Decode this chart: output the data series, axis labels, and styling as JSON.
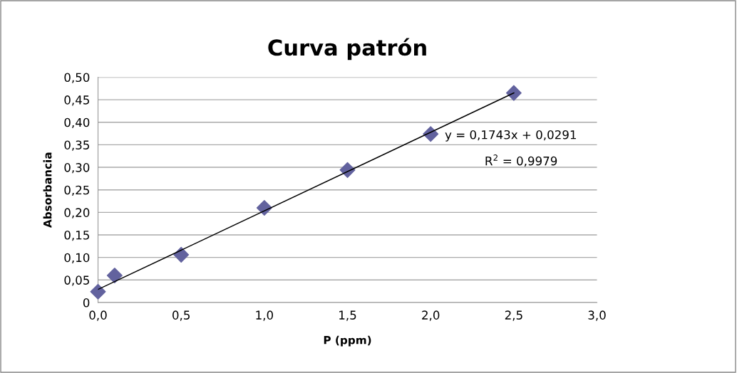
{
  "chart_data": {
    "type": "scatter",
    "title": "Curva patrón",
    "xlabel": "P (ppm)",
    "ylabel": "Absorbancia",
    "series": [
      {
        "color": "#62629e",
        "marker": "diamond",
        "x": [
          0,
          0.1,
          0.5,
          1.0,
          1.5,
          2.0,
          2.5
        ],
        "values": [
          0.024,
          0.06,
          0.106,
          0.21,
          0.294,
          0.374,
          0.465
        ]
      },
      {
        "type": "line",
        "color": "#000000",
        "marker": "none",
        "line_style": "solid",
        "x": [
          0,
          2.5
        ],
        "values": [
          0.029,
          0.465
        ]
      }
    ],
    "annotations": [
      "y = 0,1743x + 0,0291",
      "R$^{2}$ = 0,9979"
    ],
    "xlim": [
      0,
      3
    ],
    "xticks": [
      {
        "value": 0,
        "label": "0,0"
      },
      {
        "value": 0.5,
        "label": "0,5"
      },
      {
        "value": 1,
        "label": "1,0"
      },
      {
        "value": 1.5,
        "label": "1,5"
      },
      {
        "value": 2,
        "label": "2,0"
      },
      {
        "value": 2.5,
        "label": "2,5"
      },
      {
        "value": 3,
        "label": "3,0"
      }
    ],
    "ylim": [
      0,
      0.5
    ],
    "yticks": [
      0,
      {
        "value": 0.05,
        "label": "0,05"
      },
      {
        "value": 0.1,
        "label": "0,10"
      },
      {
        "value": 0.15,
        "label": "0,15"
      },
      {
        "value": 0.2,
        "label": "0,20"
      },
      {
        "value": 0.25,
        "label": "0,25"
      },
      {
        "value": 0.3,
        "label": "0,30"
      },
      {
        "value": 0.35,
        "label": "0,35"
      },
      {
        "value": 0.4,
        "label": "0,40"
      },
      {
        "value": 0.45,
        "label": "0,45"
      },
      {
        "value": 0.5,
        "label": "0,50"
      }
    ],
    "grid": "y",
    "legend": false
  }
}
